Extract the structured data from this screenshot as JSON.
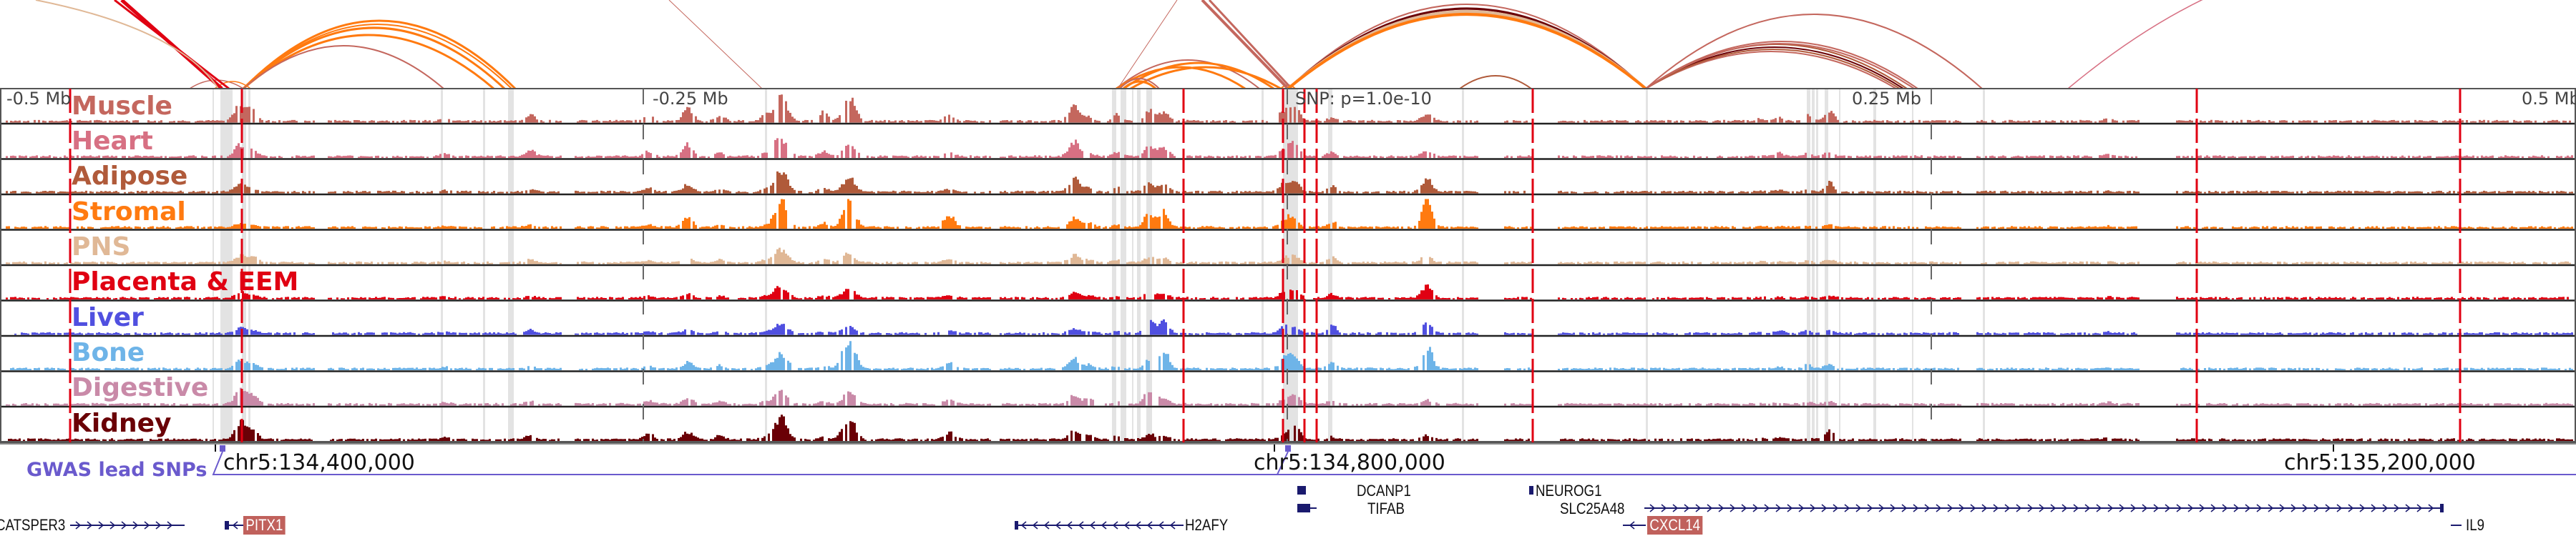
{
  "view": {
    "region": "chr5",
    "axis_ticks": [
      "-0.5 Mb",
      "-0.25 Mb",
      "0.25 Mb",
      "0.5 Mb"
    ],
    "snp_annotation": "SNP: p=1.0e-10",
    "coordinate_labels": [
      "chr5:134,400,000",
      "chr5:134,800,000",
      "chr5:135,200,000"
    ]
  },
  "tracks": [
    {
      "name": "Muscle",
      "color": "#c4675e"
    },
    {
      "name": "Heart",
      "color": "#d77083"
    },
    {
      "name": "Adipose",
      "color": "#b05a3a"
    },
    {
      "name": "Stromal",
      "color": "#ff7a10"
    },
    {
      "name": "PNS",
      "color": "#e0b896"
    },
    {
      "name": "Placenta & EEM",
      "color": "#e00012"
    },
    {
      "name": "Liver",
      "color": "#5050e0"
    },
    {
      "name": "Bone",
      "color": "#6eb4e8"
    },
    {
      "name": "Digestive",
      "color": "#c98aa8"
    },
    {
      "name": "Kidney",
      "color": "#6a0006"
    }
  ],
  "gwas": {
    "label": "GWAS lead SNPs",
    "color": "#6a5acd"
  },
  "genes": [
    {
      "name": "CATSPER3",
      "strand": "+",
      "highlight": false
    },
    {
      "name": "PITX1",
      "strand": "-",
      "highlight": true
    },
    {
      "name": "H2AFY",
      "strand": "-",
      "highlight": false
    },
    {
      "name": "DCANP1",
      "strand": "+",
      "highlight": false
    },
    {
      "name": "TIFAB",
      "strand": "-",
      "highlight": false
    },
    {
      "name": "NEUROG1",
      "strand": "-",
      "highlight": false
    },
    {
      "name": "SLC25A48",
      "strand": "+",
      "highlight": false
    },
    {
      "name": "CXCL14",
      "strand": "-",
      "highlight": true
    },
    {
      "name": "IL9",
      "strand": "-",
      "highlight": false
    }
  ],
  "colors": {
    "gene": "#1a1a6e",
    "highlight_gene_bg": "#c0615c",
    "boundary_line": "#e00012",
    "shaded_region": "#e3e3e3",
    "track_border": "#222222"
  }
}
